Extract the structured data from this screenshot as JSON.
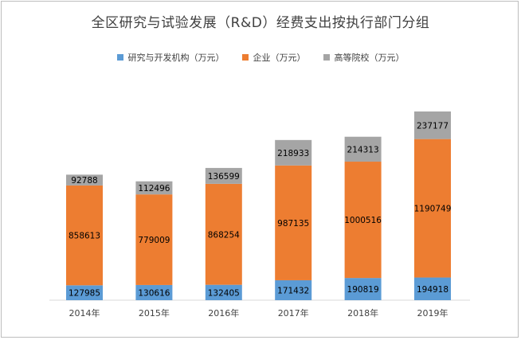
{
  "chart_data": {
    "type": "bar",
    "stacked": true,
    "title": "全区研究与试验发展（R&D）经费支出按执行部门分组",
    "categories": [
      "2014年",
      "2015年",
      "2016年",
      "2017年",
      "2018年",
      "2019年"
    ],
    "series": [
      {
        "name": "研究与开发机构（万元）",
        "color": "#5b9bd5",
        "values": [
          127985,
          130616,
          132405,
          171432,
          190819,
          194918
        ]
      },
      {
        "name": "企业（万元）",
        "color": "#ed7d31",
        "values": [
          858613,
          779009,
          868254,
          987135,
          1000516,
          1190749
        ]
      },
      {
        "name": "高等院校（万元）",
        "color": "#a5a5a5",
        "values": [
          92788,
          112496,
          136599,
          218933,
          214313,
          237177
        ]
      }
    ],
    "legend_position": "top",
    "grid": false,
    "data_labels": true
  }
}
